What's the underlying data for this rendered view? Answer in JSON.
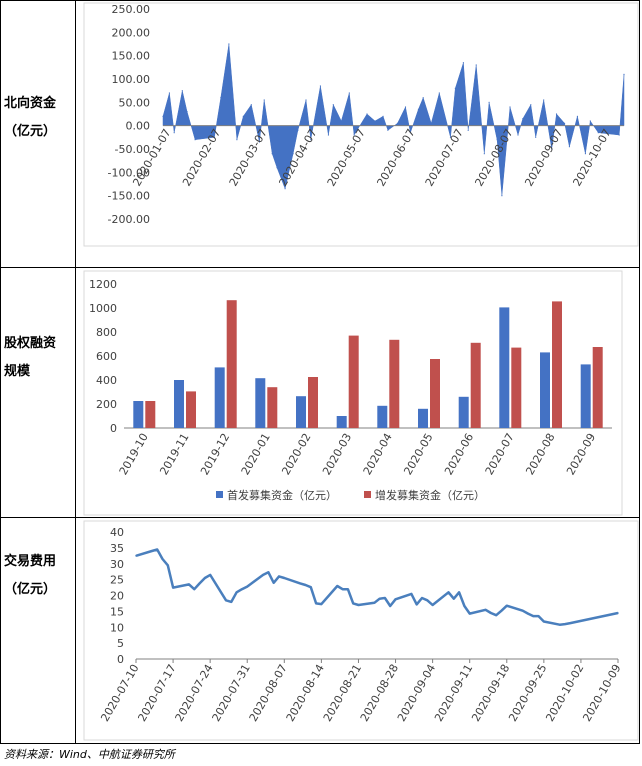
{
  "rows": [
    {
      "label_1": "北向资金",
      "label_2": "（亿元）"
    },
    {
      "label_1": "股权融资",
      "label_2": "规模"
    },
    {
      "label_1": "交易费用",
      "label_2": "（亿元）"
    }
  ],
  "source": "资料来源：Wind、中航证券研究所",
  "chart_data": [
    {
      "type": "area",
      "yticks": [
        "250.00",
        "200.00",
        "150.00",
        "100.00",
        "50.00",
        "0.00",
        "-50.00",
        "-100.00",
        "-150.00",
        "-200.00"
      ],
      "ylim": [
        -200,
        250
      ],
      "xticks": [
        "2020-01-07",
        "2020-02-07",
        "2020-03-07",
        "2020-04-07",
        "2020-05-07",
        "2020-06-07",
        "2020-07-07",
        "2020-08-07",
        "2020-09-07",
        "2020-10-07"
      ],
      "color": "#4472c4",
      "x": [
        "2020-01-02",
        "2020-01-06",
        "2020-01-09",
        "2020-01-14",
        "2020-01-17",
        "2020-01-22",
        "2020-02-03",
        "2020-02-07",
        "2020-02-12",
        "2020-02-17",
        "2020-02-21",
        "2020-02-26",
        "2020-03-02",
        "2020-03-05",
        "2020-03-10",
        "2020-03-13",
        "2020-03-18",
        "2020-03-23",
        "2020-03-26",
        "2020-03-31",
        "2020-04-03",
        "2020-04-09",
        "2020-04-14",
        "2020-04-17",
        "2020-04-22",
        "2020-04-27",
        "2020-04-30",
        "2020-05-08",
        "2020-05-13",
        "2020-05-18",
        "2020-05-21",
        "2020-05-27",
        "2020-06-01",
        "2020-06-04",
        "2020-06-09",
        "2020-06-12",
        "2020-06-17",
        "2020-06-22",
        "2020-06-29",
        "2020-07-02",
        "2020-07-07",
        "2020-07-10",
        "2020-07-15",
        "2020-07-20",
        "2020-07-23",
        "2020-07-28",
        "2020-07-31",
        "2020-08-05",
        "2020-08-10",
        "2020-08-13",
        "2020-08-18",
        "2020-08-21",
        "2020-08-26",
        "2020-08-31",
        "2020-09-03",
        "2020-09-08",
        "2020-09-11",
        "2020-09-16",
        "2020-09-21",
        "2020-09-24",
        "2020-09-29",
        "2020-10-12",
        "2020-10-15"
      ],
      "values": [
        20,
        70,
        -15,
        75,
        30,
        -30,
        -25,
        60,
        175,
        -30,
        20,
        45,
        -35,
        55,
        -60,
        -90,
        -135,
        -60,
        -10,
        55,
        -30,
        85,
        -20,
        45,
        10,
        70,
        -20,
        25,
        10,
        20,
        -10,
        5,
        40,
        -15,
        35,
        60,
        5,
        70,
        -25,
        80,
        135,
        -10,
        130,
        -60,
        50,
        -30,
        -150,
        40,
        -20,
        15,
        45,
        -25,
        55,
        -50,
        25,
        5,
        -45,
        20,
        -60,
        10,
        -15,
        -20,
        110
      ]
    },
    {
      "type": "bar",
      "yticks": [
        "1200",
        "1000",
        "800",
        "600",
        "400",
        "200",
        "0"
      ],
      "ylim": [
        0,
        1200
      ],
      "categories": [
        "2019-10",
        "2019-11",
        "2019-12",
        "2020-01",
        "2020-02",
        "2020-03",
        "2020-04",
        "2020-05",
        "2020-06",
        "2020-07",
        "2020-08",
        "2020-09"
      ],
      "series": [
        {
          "name": "首发募集资金（亿元）",
          "color": "#4472c4",
          "values": [
            225,
            400,
            505,
            415,
            265,
            100,
            185,
            160,
            260,
            1005,
            630,
            530
          ]
        },
        {
          "name": "增发募集资金（亿元）",
          "color": "#c0504d",
          "values": [
            225,
            305,
            1065,
            340,
            425,
            770,
            735,
            575,
            710,
            670,
            1055,
            675
          ]
        }
      ],
      "legend": "bottom"
    },
    {
      "type": "line",
      "yticks": [
        "40",
        "35",
        "30",
        "25",
        "20",
        "15",
        "10",
        "5",
        "0"
      ],
      "ylim": [
        0,
        40
      ],
      "xticks": [
        "2020-07-10",
        "2020-07-17",
        "2020-07-24",
        "2020-07-31",
        "2020-08-07",
        "2020-08-14",
        "2020-08-21",
        "2020-08-28",
        "2020-09-04",
        "2020-09-11",
        "2020-09-18",
        "2020-09-25",
        "2020-10-02",
        "2020-10-09"
      ],
      "color": "#4a7fbd",
      "x": [
        "2020-07-10",
        "2020-07-13",
        "2020-07-14",
        "2020-07-15",
        "2020-07-16",
        "2020-07-17",
        "2020-07-20",
        "2020-07-21",
        "2020-07-22",
        "2020-07-23",
        "2020-07-24",
        "2020-07-27",
        "2020-07-28",
        "2020-07-29",
        "2020-07-30",
        "2020-07-31",
        "2020-08-03",
        "2020-08-04",
        "2020-08-05",
        "2020-08-06",
        "2020-08-07",
        "2020-08-10",
        "2020-08-11",
        "2020-08-12",
        "2020-08-13",
        "2020-08-14",
        "2020-08-17",
        "2020-08-18",
        "2020-08-19",
        "2020-08-20",
        "2020-08-21",
        "2020-08-24",
        "2020-08-25",
        "2020-08-26",
        "2020-08-27",
        "2020-08-28",
        "2020-08-31",
        "2020-09-01",
        "2020-09-02",
        "2020-09-03",
        "2020-09-04",
        "2020-09-07",
        "2020-09-08",
        "2020-09-09",
        "2020-09-10",
        "2020-09-11",
        "2020-09-14",
        "2020-09-15",
        "2020-09-16",
        "2020-09-17",
        "2020-09-18",
        "2020-09-21",
        "2020-09-22",
        "2020-09-23",
        "2020-09-24",
        "2020-09-25",
        "2020-09-28",
        "2020-09-29",
        "2020-09-30",
        "2020-10-09"
      ],
      "values": [
        32.5,
        34,
        34.5,
        31.5,
        29.5,
        22.5,
        23.5,
        22,
        23.8,
        25.5,
        26.5,
        18.5,
        18,
        21,
        22,
        22.8,
        26.5,
        27.3,
        24,
        26,
        25.5,
        23.8,
        23.3,
        22.6,
        17.5,
        17.3,
        23,
        22,
        22,
        17.5,
        17,
        17.7,
        19,
        19.2,
        16.7,
        18.8,
        20.5,
        17.2,
        19.2,
        18.5,
        17,
        21,
        19,
        21,
        16.7,
        14.3,
        15.5,
        14.5,
        13.8,
        15.2,
        16.8,
        15.2,
        14.3,
        13.5,
        13.5,
        11.8,
        10.8,
        11,
        11.3,
        14.5
      ]
    }
  ]
}
